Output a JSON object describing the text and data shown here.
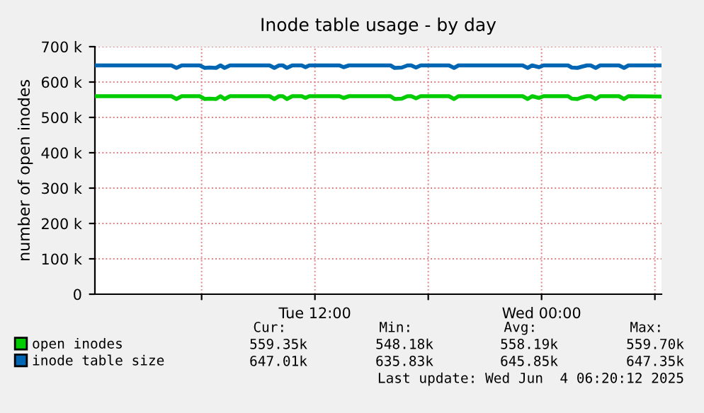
{
  "chart_data": {
    "type": "line",
    "title": "Inode table usage - by day",
    "ylabel": "number of open inodes",
    "x": [
      "2025-06-03T00:24",
      "2025-06-03T04:24",
      "2025-06-03T04:40",
      "2025-06-03T04:57",
      "2025-06-03T05:54",
      "2025-06-03T06:10",
      "2025-06-03T06:24",
      "2025-06-03T06:46",
      "2025-06-03T07:00",
      "2025-06-03T07:13",
      "2025-06-03T07:30",
      "2025-06-03T09:36",
      "2025-06-03T09:51",
      "2025-06-03T10:06",
      "2025-06-03T10:18",
      "2025-06-03T10:31",
      "2025-06-03T10:48",
      "2025-06-03T11:18",
      "2025-06-03T11:30",
      "2025-06-03T11:42",
      "2025-06-03T13:18",
      "2025-06-03T13:31",
      "2025-06-03T13:48",
      "2025-06-03T16:00",
      "2025-06-03T16:13",
      "2025-06-03T16:36",
      "2025-06-03T16:54",
      "2025-06-03T17:06",
      "2025-06-03T17:21",
      "2025-06-03T17:36",
      "2025-06-03T19:06",
      "2025-06-03T19:22",
      "2025-06-03T19:36",
      "2025-06-03T23:00",
      "2025-06-03T23:16",
      "2025-06-03T23:30",
      "2025-06-03T23:52",
      "2025-06-04T00:06",
      "2025-06-04T01:24",
      "2025-06-04T01:36",
      "2025-06-04T01:54",
      "2025-06-04T02:06",
      "2025-06-04T02:24",
      "2025-06-04T02:36",
      "2025-06-04T02:52",
      "2025-06-04T03:06",
      "2025-06-04T04:06",
      "2025-06-04T04:22",
      "2025-06-04T04:36",
      "2025-06-04T06:20"
    ],
    "series": [
      {
        "name": "open inodes",
        "color": "#00cc00",
        "values": [
          560000,
          560000,
          552000,
          560000,
          560000,
          552000,
          553000,
          552000,
          560000,
          552000,
          560000,
          560000,
          552000,
          560000,
          560000,
          552000,
          560000,
          560000,
          555000,
          560000,
          560000,
          555000,
          560000,
          560000,
          552000,
          553000,
          560000,
          560000,
          554000,
          560000,
          560000,
          552000,
          560000,
          560000,
          552000,
          560000,
          555000,
          560000,
          560000,
          553000,
          552000,
          556000,
          560000,
          560000,
          552000,
          560000,
          560000,
          552000,
          560000,
          559000
        ]
      },
      {
        "name": "inode table size",
        "color": "#0066b3",
        "values": [
          647000,
          647000,
          640000,
          647000,
          647000,
          640000,
          641000,
          640000,
          647000,
          640000,
          647000,
          647000,
          640000,
          647000,
          647000,
          640000,
          647000,
          647000,
          642000,
          647000,
          647000,
          642000,
          647000,
          647000,
          640000,
          641000,
          647000,
          647000,
          641000,
          647000,
          647000,
          640000,
          647000,
          647000,
          640000,
          647000,
          642000,
          647000,
          647000,
          641000,
          640000,
          643000,
          647000,
          647000,
          640000,
          647000,
          647000,
          640000,
          647000,
          647000
        ]
      }
    ],
    "xlim": [
      "2025-06-03T00:21",
      "2025-06-04T06:21"
    ],
    "xticks": [
      {
        "value": "2025-06-03T06:00",
        "label": null
      },
      {
        "value": "2025-06-03T12:00",
        "label": "Tue 12:00"
      },
      {
        "value": "2025-06-03T18:00",
        "label": null
      },
      {
        "value": "2025-06-04T00:00",
        "label": "Wed 00:00"
      },
      {
        "value": "2025-06-04T06:00",
        "label": null
      }
    ],
    "ylim": [
      0,
      700000
    ],
    "yticks": [
      0,
      {
        "value": 100000,
        "label": "100 k"
      },
      {
        "value": 200000,
        "label": "200 k"
      },
      {
        "value": 300000,
        "label": "300 k"
      },
      {
        "value": 400000,
        "label": "400 k"
      },
      {
        "value": 500000,
        "label": "500 k"
      },
      {
        "value": 600000,
        "label": "600 k"
      },
      {
        "value": 700000,
        "label": "700 k"
      }
    ],
    "grid": true,
    "legend": "bottom left",
    "marker": "none",
    "line_style": "solid",
    "annotations": [
      "Cur:",
      "Min:",
      "Avg:",
      "Max:",
      "559.35k",
      "548.18k",
      "558.19k",
      "559.70k",
      "647.01k",
      "635.83k",
      "645.85k",
      "647.35k",
      "Last update: Wed Jun  4 06:20:12 2025"
    ]
  }
}
